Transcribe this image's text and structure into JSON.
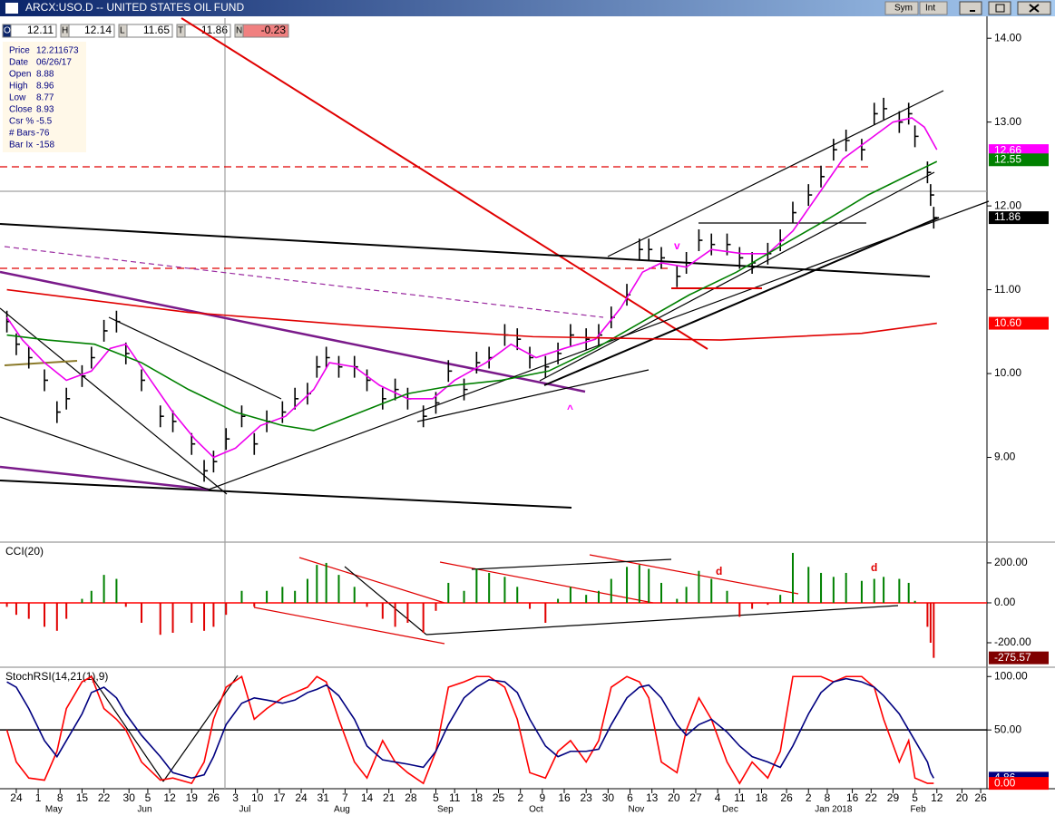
{
  "window": {
    "title": "ARCX:USO.D -- UNITED STATES OIL FUND",
    "buttons": [
      "Sym",
      "Int"
    ]
  },
  "quote": [
    {
      "key": "O",
      "value": "12.11"
    },
    {
      "key": "H",
      "value": "12.14"
    },
    {
      "key": "L",
      "value": "11.65"
    },
    {
      "key": "T",
      "value": "11.86"
    },
    {
      "key": "N",
      "value": "-0.23"
    }
  ],
  "info": [
    {
      "label": "Price",
      "value": "12.211673"
    },
    {
      "label": "Date",
      "value": "06/26/17"
    },
    {
      "label": "Open",
      "value": "8.88"
    },
    {
      "label": "High",
      "value": "8.96"
    },
    {
      "label": "Low",
      "value": "8.77"
    },
    {
      "label": "Close",
      "value": "8.93"
    },
    {
      "label": "Csr %",
      "value": "-5.5"
    },
    {
      "label": "# Bars",
      "value": "-76"
    },
    {
      "label": "Bar Ix",
      "value": "-158"
    }
  ],
  "x_axis": {
    "xlim": [
      -5.2,
      310
    ],
    "ticks": [
      {
        "value": 0,
        "label": "24"
      },
      {
        "value": 7,
        "label": "1"
      },
      {
        "value": 14,
        "label": "8"
      },
      {
        "value": 21,
        "label": "15"
      },
      {
        "value": 28,
        "label": "22"
      },
      {
        "value": 36,
        "label": "30"
      },
      {
        "value": 42,
        "label": "5"
      },
      {
        "value": 49,
        "label": "12"
      },
      {
        "value": 56,
        "label": "19"
      },
      {
        "value": 63,
        "label": "26"
      },
      {
        "value": 70,
        "label": "3"
      },
      {
        "value": 77,
        "label": "10"
      },
      {
        "value": 84,
        "label": "17"
      },
      {
        "value": 91,
        "label": "24"
      },
      {
        "value": 98,
        "label": "31"
      },
      {
        "value": 105,
        "label": "7"
      },
      {
        "value": 112,
        "label": "14"
      },
      {
        "value": 119,
        "label": "21"
      },
      {
        "value": 126,
        "label": "28"
      },
      {
        "value": 134,
        "label": "5"
      },
      {
        "value": 140,
        "label": "11"
      },
      {
        "value": 147,
        "label": "18"
      },
      {
        "value": 154,
        "label": "25"
      },
      {
        "value": 161,
        "label": "2"
      },
      {
        "value": 168,
        "label": "9"
      },
      {
        "value": 175,
        "label": "16"
      },
      {
        "value": 182,
        "label": "23"
      },
      {
        "value": 189,
        "label": "30"
      },
      {
        "value": 196,
        "label": "6"
      },
      {
        "value": 203,
        "label": "13"
      },
      {
        "value": 210,
        "label": "20"
      },
      {
        "value": 217,
        "label": "27"
      },
      {
        "value": 224,
        "label": "4"
      },
      {
        "value": 231,
        "label": "11"
      },
      {
        "value": 238,
        "label": "18"
      },
      {
        "value": 246,
        "label": "26"
      },
      {
        "value": 253,
        "label": "2"
      },
      {
        "value": 259,
        "label": "8"
      },
      {
        "value": 267,
        "label": "16"
      },
      {
        "value": 273,
        "label": "22"
      },
      {
        "value": 280,
        "label": "29"
      },
      {
        "value": 287,
        "label": "5"
      },
      {
        "value": 294,
        "label": "12"
      },
      {
        "value": 302,
        "label": "20"
      },
      {
        "value": 308,
        "label": "26"
      }
    ],
    "months": [
      {
        "value": 12,
        "label": "May"
      },
      {
        "value": 41,
        "label": "Jun"
      },
      {
        "value": 73,
        "label": "Jul"
      },
      {
        "value": 104,
        "label": "Aug"
      },
      {
        "value": 137,
        "label": "Sep"
      },
      {
        "value": 166,
        "label": "Oct"
      },
      {
        "value": 198,
        "label": "Nov"
      },
      {
        "value": 228,
        "label": "Dec"
      },
      {
        "value": 261,
        "label": "Jan 2018"
      },
      {
        "value": 288,
        "label": "Feb"
      }
    ]
  },
  "chart_data": [
    {
      "type": "price",
      "color": "#000000",
      "x": [
        -3,
        0,
        4,
        9,
        13,
        16,
        21,
        24,
        28,
        32,
        35,
        40,
        46,
        50,
        56,
        60,
        63,
        67,
        72,
        76,
        80,
        85,
        89,
        93,
        96,
        99,
        103,
        108,
        112,
        117,
        121,
        125,
        130,
        134,
        138,
        143,
        147,
        151,
        156,
        160,
        164,
        169,
        173,
        177,
        182,
        186,
        190,
        195,
        199,
        202,
        206,
        211,
        214,
        218,
        222,
        227,
        231,
        235,
        240,
        244,
        248,
        253,
        257,
        261,
        265,
        270,
        274,
        277,
        282,
        285,
        287,
        291,
        292,
        293
      ],
      "values": [
        10.62,
        10.35,
        10.19,
        9.92,
        9.54,
        9.7,
        9.97,
        10.19,
        10.51,
        10.62,
        10.24,
        9.92,
        9.49,
        9.43,
        9.16,
        8.84,
        8.95,
        9.22,
        9.49,
        9.16,
        9.43,
        9.54,
        9.7,
        9.76,
        10.08,
        10.19,
        10.08,
        10.08,
        9.92,
        9.7,
        9.81,
        9.7,
        9.49,
        9.65,
        10.03,
        9.81,
        10.13,
        10.19,
        10.46,
        10.41,
        10.19,
        10.08,
        10.24,
        10.46,
        10.41,
        10.46,
        10.67,
        10.94,
        11.48,
        11.48,
        11.38,
        11.16,
        11.32,
        11.59,
        11.54,
        11.54,
        11.38,
        11.32,
        11.43,
        11.59,
        11.92,
        12.13,
        12.35,
        12.67,
        12.78,
        12.67,
        13.1,
        13.16,
        13.0,
        13.1,
        12.83,
        12.4,
        12.13,
        11.86
      ],
      "series": [
        {
          "color": "#ee00ee",
          "x": [
            -3,
            2,
            9,
            16,
            24,
            30,
            35,
            42,
            50,
            57,
            63,
            70,
            78,
            86,
            95,
            100,
            108,
            116,
            125,
            133,
            140,
            150,
            158,
            166,
            175,
            185,
            193,
            200,
            206,
            214,
            222,
            232,
            240,
            248,
            256,
            264,
            272,
            280,
            286,
            290,
            294
          ],
          "values": [
            10.67,
            10.4,
            10.13,
            9.92,
            10.03,
            10.3,
            10.35,
            9.97,
            9.54,
            9.22,
            9.0,
            9.11,
            9.38,
            9.49,
            9.81,
            10.13,
            10.08,
            9.86,
            9.7,
            9.7,
            9.92,
            10.13,
            10.35,
            10.19,
            10.3,
            10.41,
            10.78,
            11.21,
            11.32,
            11.27,
            11.48,
            11.43,
            11.43,
            11.7,
            12.13,
            12.56,
            12.78,
            13.0,
            13.05,
            12.94,
            12.67
          ]
        },
        {
          "color": "#008000",
          "x": [
            -3,
            10,
            25,
            40,
            55,
            70,
            85,
            95,
            110,
            125,
            140,
            155,
            170,
            185,
            200,
            215,
            230,
            245,
            260,
            272,
            284,
            294
          ],
          "values": [
            10.46,
            10.4,
            10.35,
            10.13,
            9.81,
            9.54,
            9.38,
            9.32,
            9.54,
            9.76,
            9.86,
            9.92,
            10.03,
            10.3,
            10.62,
            10.94,
            11.21,
            11.54,
            11.86,
            12.13,
            12.35,
            12.53
          ]
        },
        {
          "color": "#e00000",
          "x": [
            -3,
            55,
            110,
            165,
            225,
            270,
            294
          ],
          "values": [
            11.0,
            10.73,
            10.57,
            10.44,
            10.4,
            10.48,
            10.6
          ]
        }
      ],
      "ylim": [
        8.0,
        14.24
      ],
      "yticks": [
        {
          "value": 14,
          "label": "14.00"
        },
        {
          "value": 13,
          "label": "13.00"
        },
        {
          "value": 12,
          "label": "12.00"
        },
        {
          "value": 11,
          "label": "11.00"
        },
        {
          "value": 10,
          "label": "10.00"
        },
        {
          "value": 9,
          "label": "9.00"
        }
      ],
      "axis_boxes": [
        {
          "value": 12.66,
          "label": "12.66",
          "color": "#ff00ff"
        },
        {
          "value": 12.55,
          "label": "12.55",
          "color": "#008000"
        },
        {
          "value": 11.86,
          "label": "11.86",
          "color": "#000000"
        },
        {
          "value": 10.6,
          "label": "10.60",
          "color": "#ff0000"
        }
      ],
      "annotations": [
        "v",
        "^"
      ]
    },
    {
      "type": "histogram",
      "title": "CCI(20)",
      "up_color": "#008000",
      "down_color": "#e00000",
      "x": [
        -3,
        0,
        4,
        9,
        13,
        16,
        21,
        24,
        28,
        32,
        35,
        40,
        46,
        50,
        56,
        60,
        63,
        67,
        72,
        76,
        80,
        85,
        89,
        93,
        96,
        99,
        103,
        108,
        112,
        117,
        121,
        125,
        130,
        134,
        138,
        143,
        147,
        151,
        156,
        160,
        164,
        169,
        173,
        177,
        182,
        186,
        190,
        195,
        199,
        202,
        206,
        211,
        214,
        218,
        222,
        227,
        231,
        235,
        240,
        244,
        248,
        253,
        257,
        261,
        265,
        270,
        274,
        277,
        282,
        285,
        287,
        291,
        292,
        293
      ],
      "values": [
        -20,
        -60,
        -80,
        -120,
        -140,
        -80,
        20,
        60,
        140,
        120,
        -20,
        -100,
        -160,
        -150,
        -100,
        -140,
        -120,
        -60,
        60,
        -20,
        60,
        80,
        60,
        120,
        190,
        200,
        140,
        80,
        -20,
        -80,
        -120,
        -100,
        -150,
        -40,
        100,
        60,
        170,
        150,
        130,
        80,
        -30,
        -100,
        20,
        80,
        40,
        60,
        120,
        180,
        190,
        170,
        100,
        20,
        80,
        160,
        120,
        60,
        -70,
        -30,
        -10,
        40,
        250,
        180,
        150,
        130,
        150,
        110,
        120,
        130,
        120,
        100,
        10,
        -120,
        -200,
        -275.57
      ],
      "ylim": [
        -318,
        295
      ],
      "yticks": [
        {
          "value": 200,
          "label": "200.00"
        },
        {
          "value": 0,
          "label": "0.00"
        },
        {
          "value": -200,
          "label": "-200.00"
        }
      ],
      "ref_lines": [
        {
          "value": 0,
          "color": "#ff0000"
        }
      ],
      "axis_boxes": [
        {
          "value": -275.57,
          "label": "-275.57",
          "color": "#800000"
        }
      ],
      "annotations": [
        "d",
        "d"
      ]
    },
    {
      "type": "line",
      "title": "StochRSI(14,21(1),9)",
      "series": [
        {
          "color": "#ff0000",
          "x": [
            -3,
            0,
            4,
            9,
            13,
            16,
            21,
            24,
            28,
            32,
            35,
            40,
            46,
            50,
            56,
            60,
            63,
            67,
            72,
            76,
            80,
            85,
            89,
            93,
            96,
            99,
            103,
            108,
            112,
            117,
            121,
            125,
            130,
            134,
            138,
            143,
            147,
            151,
            156,
            160,
            164,
            169,
            173,
            177,
            182,
            186,
            190,
            195,
            199,
            202,
            206,
            211,
            214,
            218,
            222,
            227,
            231,
            235,
            240,
            244,
            248,
            253,
            257,
            261,
            265,
            270,
            274,
            277,
            282,
            285,
            287,
            291,
            292,
            293
          ],
          "values": [
            50,
            20,
            5,
            3,
            30,
            70,
            95,
            100,
            70,
            60,
            50,
            20,
            3,
            5,
            0,
            20,
            60,
            90,
            100,
            60,
            70,
            80,
            85,
            90,
            100,
            95,
            60,
            20,
            5,
            40,
            20,
            10,
            0,
            30,
            90,
            95,
            100,
            100,
            90,
            60,
            10,
            5,
            30,
            40,
            20,
            40,
            90,
            100,
            95,
            80,
            20,
            10,
            50,
            80,
            60,
            20,
            0,
            20,
            5,
            30,
            100,
            100,
            100,
            95,
            100,
            100,
            90,
            60,
            20,
            40,
            5,
            0,
            0,
            0
          ]
        },
        {
          "color": "#000080",
          "x": [
            -3,
            0,
            4,
            9,
            13,
            16,
            21,
            24,
            28,
            32,
            35,
            40,
            46,
            50,
            56,
            60,
            63,
            67,
            72,
            76,
            80,
            85,
            89,
            93,
            96,
            99,
            103,
            108,
            112,
            117,
            121,
            125,
            130,
            134,
            138,
            143,
            147,
            151,
            156,
            160,
            164,
            169,
            173,
            177,
            182,
            186,
            190,
            195,
            199,
            202,
            206,
            211,
            214,
            218,
            222,
            227,
            231,
            235,
            240,
            244,
            248,
            253,
            257,
            261,
            265,
            270,
            274,
            277,
            282,
            285,
            287,
            291,
            292,
            293
          ],
          "values": [
            95,
            90,
            70,
            40,
            25,
            40,
            65,
            85,
            90,
            80,
            65,
            45,
            25,
            10,
            5,
            8,
            25,
            55,
            75,
            80,
            78,
            75,
            78,
            85,
            88,
            92,
            82,
            60,
            35,
            22,
            20,
            18,
            15,
            30,
            55,
            80,
            90,
            97,
            95,
            85,
            60,
            35,
            25,
            30,
            30,
            32,
            55,
            80,
            90,
            92,
            80,
            55,
            45,
            55,
            60,
            48,
            35,
            25,
            20,
            15,
            35,
            65,
            85,
            95,
            98,
            95,
            90,
            82,
            65,
            50,
            40,
            20,
            10,
            4.86
          ]
        }
      ],
      "ylim": [
        -5,
        107
      ],
      "yticks": [
        {
          "value": 100,
          "label": "100.00"
        },
        {
          "value": 50,
          "label": "50.00"
        }
      ],
      "ref_lines": [
        {
          "value": 50,
          "color": "#000000"
        }
      ],
      "axis_boxes": [
        {
          "value": 4.86,
          "label": "4.86",
          "color": "#000080"
        },
        {
          "value": 0,
          "label": "0.00",
          "color": "#ff0000"
        }
      ]
    }
  ]
}
